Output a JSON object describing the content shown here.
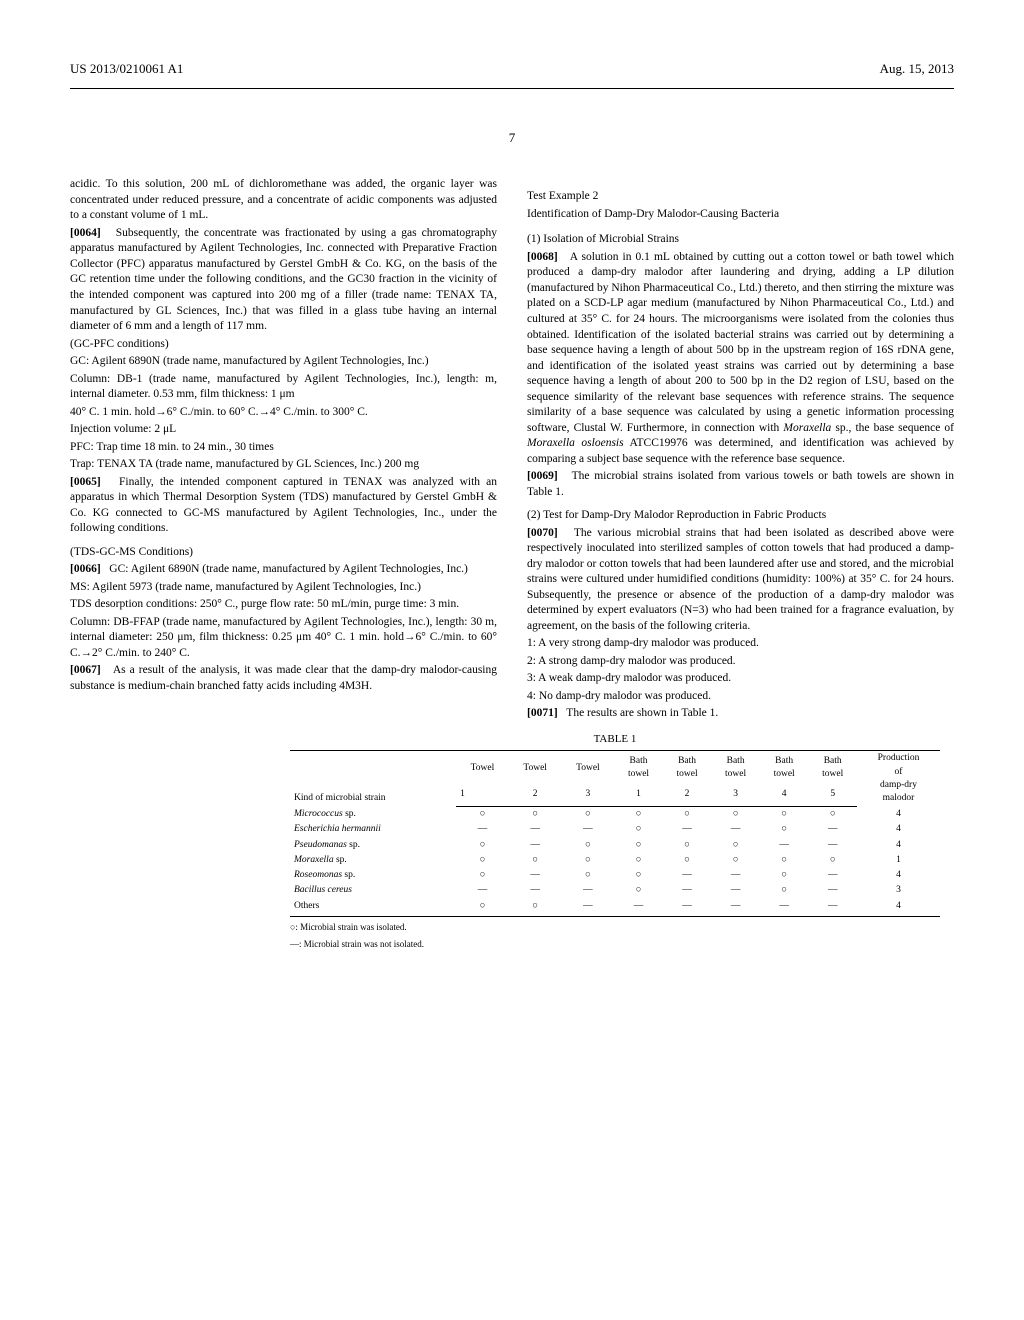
{
  "header": {
    "left": "US 2013/0210061 A1",
    "right": "Aug. 15, 2013"
  },
  "page_number": "7",
  "left_col": {
    "p1": "acidic. To this solution, 200 mL of dichloromethane was added, the organic layer was concentrated under reduced pressure, and a concentrate of acidic components was adjusted to a constant volume of 1 mL.",
    "p2_num": "[0064]",
    "p2": "Subsequently, the concentrate was fractionated by using a gas chromatography apparatus manufactured by Agilent Technologies, Inc. connected with Preparative Fraction Collector (PFC) apparatus manufactured by Gerstel GmbH & Co. KG, on the basis of the GC retention time under the following conditions, and the GC30 fraction in the vicinity of the intended component was captured into 200 mg of a filler (trade name: TENAX TA, manufactured by GL Sciences, Inc.) that was filled in a glass tube having an internal diameter of 6 mm and a length of 117 mm.",
    "p3": "(GC-PFC conditions)",
    "p4": "GC: Agilent 6890N (trade name, manufactured by Agilent Technologies, Inc.)",
    "p5": "Column: DB-1 (trade name, manufactured by Agilent Technologies, Inc.), length: m, internal diameter. 0.53 mm, film thickness: 1 μm",
    "p6": "40° C. 1 min. hold→6° C./min. to 60° C.→4° C./min. to 300° C.",
    "p7": "Injection volume: 2 μL",
    "p8": "PFC: Trap time 18 min. to 24 min., 30 times",
    "p9": "Trap: TENAX TA (trade name, manufactured by GL Sciences, Inc.) 200 mg",
    "p10_num": "[0065]",
    "p10": "Finally, the intended component captured in TENAX was analyzed with an apparatus in which Thermal Desorption System (TDS) manufactured by Gerstel GmbH & Co. KG connected to GC-MS manufactured by Agilent Technologies, Inc., under the following conditions.",
    "p11": "(TDS-GC-MS Conditions)",
    "p12_num": "[0066]",
    "p12": "GC: Agilent 6890N (trade name, manufactured by Agilent Technologies, Inc.)",
    "p13": "MS: Agilent 5973 (trade name, manufactured by Agilent Technologies, Inc.)",
    "p14": "TDS desorption conditions: 250° C., purge flow rate: 50 mL/min, purge time: 3 min.",
    "p15": "Column: DB-FFAP (trade name, manufactured by Agilent Technologies, Inc.), length: 30 m, internal diameter: 250 μm, film thickness: 0.25 μm 40° C. 1 min. hold→6° C./min. to 60° C.→2° C./min. to 240° C.",
    "p16_num": "[0067]",
    "p16": "As a result of the analysis, it was made clear that the damp-dry malodor-causing substance is medium-chain branched fatty acids including 4M3H."
  },
  "right_col": {
    "test_title": "Test Example 2",
    "test_subtitle": "Identification of Damp-Dry Malodor-Causing Bacteria",
    "sec1": "(1) Isolation of Microbial Strains",
    "p1_num": "[0068]",
    "p1": "A solution in 0.1 mL obtained by cutting out a cotton towel or bath towel which produced a damp-dry malodor after laundering and drying, adding a LP dilution (manufactured by Nihon Pharmaceutical Co., Ltd.) thereto, and then stirring the mixture was plated on a SCD-LP agar medium (manufactured by Nihon Pharmaceutical Co., Ltd.) and cultured at 35° C. for 24 hours. The microorganisms were isolated from the colonies thus obtained. Identification of the isolated bacterial strains was carried out by determining a base sequence having a length of about 500 bp in the upstream region of 16S rDNA gene, and identification of the isolated yeast strains was carried out by determining a base sequence having a length of about 200 to 500 bp in the D2 region of LSU, based on the sequence similarity of the relevant base sequences with reference strains. The sequence similarity of a base sequence was calculated by using a genetic information processing software, Clustal W. Furthermore, in connection with ",
    "p1_i": "Moraxella",
    "p1b": " sp., the base sequence of ",
    "p1_i2": "Moraxella osloensis",
    "p1c": " ATCC19976 was determined, and identification was achieved by comparing a subject base sequence with the reference base sequence.",
    "p2_num": "[0069]",
    "p2": "The microbial strains isolated from various towels or bath towels are shown in Table 1.",
    "sec2": "(2) Test for Damp-Dry Malodor Reproduction in Fabric Products",
    "p3_num": "[0070]",
    "p3": "The various microbial strains that had been isolated as described above were respectively inoculated into sterilized samples of cotton towels that had produced a damp-dry malodor or cotton towels that had been laundered after use and stored, and the microbial strains were cultured under humidified conditions (humidity: 100%) at 35° C. for 24 hours. Subsequently, the presence or absence of the production of a damp-dry malodor was determined by expert evaluators (N=3) who had been trained for a fragrance evaluation, by agreement, on the basis of the following criteria.",
    "c1": "1: A very strong damp-dry malodor was produced.",
    "c2": "2: A strong damp-dry malodor was produced.",
    "c3": "3: A weak damp-dry malodor was produced.",
    "c4": "4: No damp-dry malodor was produced.",
    "p4_num": "[0071]",
    "p4": "The results are shown in Table 1."
  },
  "table": {
    "caption": "TABLE 1",
    "headers": [
      "Kind of microbial strain",
      "Towel 1",
      "Towel 2",
      "Towel 3",
      "Bath towel 1",
      "Bath towel 2",
      "Bath towel 3",
      "Bath towel 4",
      "Bath towel 5",
      "Production of damp-dry malodor"
    ],
    "rows": [
      {
        "name_i": "Micrococcus",
        "name_r": " sp.",
        "cells": [
          "○",
          "○",
          "○",
          "○",
          "○",
          "○",
          "○",
          "○",
          "4"
        ]
      },
      {
        "name_i": "Escherichia hermannii",
        "name_r": "",
        "cells": [
          "—",
          "—",
          "—",
          "○",
          "—",
          "—",
          "○",
          "—",
          "4"
        ]
      },
      {
        "name_i": "Pseudomanas",
        "name_r": " sp.",
        "cells": [
          "○",
          "—",
          "○",
          "○",
          "○",
          "○",
          "—",
          "—",
          "4"
        ]
      },
      {
        "name_i": "Moraxella",
        "name_r": " sp.",
        "cells": [
          "○",
          "○",
          "○",
          "○",
          "○",
          "○",
          "○",
          "○",
          "1"
        ]
      },
      {
        "name_i": "Roseomonas",
        "name_r": " sp.",
        "cells": [
          "○",
          "—",
          "○",
          "○",
          "—",
          "—",
          "○",
          "—",
          "4"
        ]
      },
      {
        "name_i": "Bacillus cereus",
        "name_r": "",
        "cells": [
          "—",
          "—",
          "—",
          "○",
          "—",
          "—",
          "○",
          "—",
          "3"
        ]
      },
      {
        "name_i": "",
        "name_r": "Others",
        "cells": [
          "○",
          "○",
          "—",
          "—",
          "—",
          "—",
          "—",
          "—",
          "4"
        ]
      }
    ],
    "note1": "○: Microbial strain was isolated.",
    "note2": "—: Microbial strain was not isolated."
  }
}
